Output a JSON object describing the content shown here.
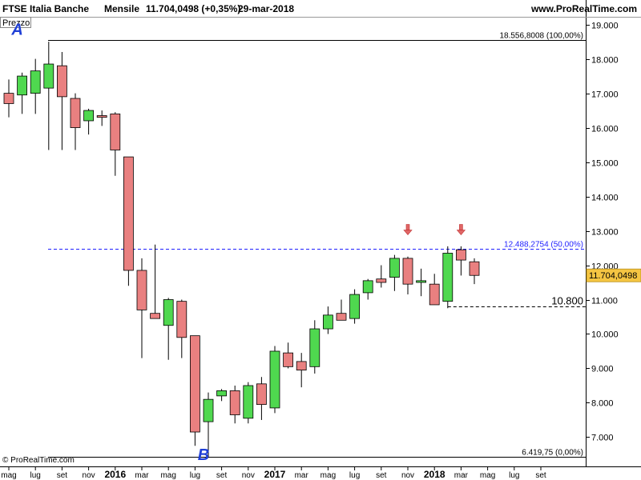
{
  "header": {
    "instrument": "FTSE Italia Banche",
    "period": "Mensile",
    "quote": "11.704,0498 (+0,35%)",
    "date": "29-mar-2018",
    "site": "www.ProRealTime.com"
  },
  "panel_label": "Prezzo",
  "copyright": "© ProRealTime.com",
  "colors": {
    "up": "#33cc33",
    "down": "#e06666",
    "up_fill": "#4fd84f",
    "down_fill": "#e98080",
    "fib": "#1f1fff",
    "price_tag": "#f5c542"
  },
  "chart_data": {
    "type": "candlestick",
    "ylim": [
      6150,
      19200
    ],
    "y_ticks": [
      {
        "v": 19000,
        "label": "19.000"
      },
      {
        "v": 18000,
        "label": "18.000"
      },
      {
        "v": 17000,
        "label": "17.000"
      },
      {
        "v": 16000,
        "label": "16.000"
      },
      {
        "v": 15000,
        "label": "15.000"
      },
      {
        "v": 14000,
        "label": "14.000"
      },
      {
        "v": 13000,
        "label": "13.000"
      },
      {
        "v": 12000,
        "label": "12.000"
      },
      {
        "v": 11000,
        "label": "11.000"
      },
      {
        "v": 10000,
        "label": "10.000"
      },
      {
        "v": 9000,
        "label": "9.000"
      },
      {
        "v": 8000,
        "label": "8.000"
      },
      {
        "v": 7000,
        "label": "7.000"
      }
    ],
    "x_labels": [
      {
        "i": 0,
        "label": "mag",
        "bold": false
      },
      {
        "i": 2,
        "label": "lug",
        "bold": false
      },
      {
        "i": 4,
        "label": "set",
        "bold": false
      },
      {
        "i": 6,
        "label": "nov",
        "bold": false
      },
      {
        "i": 8,
        "label": "2016",
        "bold": true
      },
      {
        "i": 10,
        "label": "mar",
        "bold": false
      },
      {
        "i": 12,
        "label": "mag",
        "bold": false
      },
      {
        "i": 14,
        "label": "lug",
        "bold": false
      },
      {
        "i": 16,
        "label": "set",
        "bold": false
      },
      {
        "i": 18,
        "label": "nov",
        "bold": false
      },
      {
        "i": 20,
        "label": "2017",
        "bold": true
      },
      {
        "i": 22,
        "label": "mar",
        "bold": false
      },
      {
        "i": 24,
        "label": "mag",
        "bold": false
      },
      {
        "i": 26,
        "label": "lug",
        "bold": false
      },
      {
        "i": 28,
        "label": "set",
        "bold": false
      },
      {
        "i": 30,
        "label": "nov",
        "bold": false
      },
      {
        "i": 32,
        "label": "2018",
        "bold": true
      },
      {
        "i": 34,
        "label": "mar",
        "bold": false
      },
      {
        "i": 36,
        "label": "mag",
        "bold": false
      },
      {
        "i": 38,
        "label": "lug",
        "bold": false
      },
      {
        "i": 40,
        "label": "set",
        "bold": false
      }
    ],
    "candles": [
      {
        "o": 17000,
        "h": 17400,
        "l": 16300,
        "c": 16700
      },
      {
        "o": 16950,
        "h": 17600,
        "l": 16400,
        "c": 17500
      },
      {
        "o": 17000,
        "h": 18000,
        "l": 16400,
        "c": 17650
      },
      {
        "o": 17150,
        "h": 18500,
        "l": 15350,
        "c": 17850
      },
      {
        "o": 17800,
        "h": 18200,
        "l": 15350,
        "c": 16900
      },
      {
        "o": 16850,
        "h": 17000,
        "l": 15350,
        "c": 16000
      },
      {
        "o": 16200,
        "h": 16550,
        "l": 15800,
        "c": 16500
      },
      {
        "o": 16350,
        "h": 16500,
        "l": 16050,
        "c": 16300
      },
      {
        "o": 16400,
        "h": 16450,
        "l": 14600,
        "c": 15350
      },
      {
        "o": 15150,
        "h": 15150,
        "l": 11400,
        "c": 11850
      },
      {
        "o": 11850,
        "h": 12200,
        "l": 9300,
        "c": 10700
      },
      {
        "o": 10600,
        "h": 12600,
        "l": 10450,
        "c": 10450
      },
      {
        "o": 10250,
        "h": 11050,
        "l": 9250,
        "c": 11000
      },
      {
        "o": 10950,
        "h": 11000,
        "l": 9300,
        "c": 9900
      },
      {
        "o": 9950,
        "h": 9950,
        "l": 6750,
        "c": 7150
      },
      {
        "o": 7450,
        "h": 8300,
        "l": 6400,
        "c": 8100
      },
      {
        "o": 8200,
        "h": 8400,
        "l": 8050,
        "c": 8350
      },
      {
        "o": 8350,
        "h": 8500,
        "l": 7400,
        "c": 7650
      },
      {
        "o": 7550,
        "h": 8600,
        "l": 7400,
        "c": 8500
      },
      {
        "o": 8550,
        "h": 8750,
        "l": 7500,
        "c": 7950
      },
      {
        "o": 7850,
        "h": 9650,
        "l": 7700,
        "c": 9500
      },
      {
        "o": 9450,
        "h": 9750,
        "l": 9000,
        "c": 9050
      },
      {
        "o": 9200,
        "h": 9450,
        "l": 8450,
        "c": 8950
      },
      {
        "o": 9050,
        "h": 10400,
        "l": 8850,
        "c": 10150
      },
      {
        "o": 10150,
        "h": 10800,
        "l": 10000,
        "c": 10550
      },
      {
        "o": 10600,
        "h": 11000,
        "l": 10400,
        "c": 10400
      },
      {
        "o": 10450,
        "h": 11300,
        "l": 10300,
        "c": 11150
      },
      {
        "o": 11200,
        "h": 11600,
        "l": 11000,
        "c": 11550
      },
      {
        "o": 11600,
        "h": 12000,
        "l": 11350,
        "c": 11500
      },
      {
        "o": 11650,
        "h": 12300,
        "l": 11250,
        "c": 12200
      },
      {
        "o": 12200,
        "h": 12250,
        "l": 11150,
        "c": 11450
      },
      {
        "o": 11500,
        "h": 11900,
        "l": 11100,
        "c": 11550
      },
      {
        "o": 11450,
        "h": 11750,
        "l": 10850,
        "c": 10850
      },
      {
        "o": 10950,
        "h": 12550,
        "l": 10750,
        "c": 12350
      },
      {
        "o": 12450,
        "h": 12550,
        "l": 11700,
        "c": 12150
      },
      {
        "o": 12100,
        "h": 12200,
        "l": 11450,
        "c": 11704.0498
      }
    ],
    "levels": [
      {
        "name": "A",
        "value": 18556.8008,
        "label": "18.556,8008 (100,00%)",
        "style": "solid"
      },
      {
        "name": "fib50",
        "value": 12488.2754,
        "label": "12.488,2754 (50,00%)",
        "style": "dashed"
      },
      {
        "name": "B",
        "value": 6419.75,
        "label": "6.419,75 (0,00%)",
        "style": "solid"
      }
    ],
    "support": {
      "value": 10800,
      "label": "10.800",
      "from_index": 33
    },
    "point_labels": [
      {
        "text": "A",
        "index": 1,
        "value": 18556.8008
      },
      {
        "text": "B",
        "index": 15,
        "value": 6419.75
      }
    ],
    "arrows": [
      {
        "index": 30,
        "value": 12488.2754
      },
      {
        "index": 34,
        "value": 12488.2754
      }
    ],
    "last_price": {
      "value": 11704.0498,
      "label": "11.704,0498"
    }
  }
}
